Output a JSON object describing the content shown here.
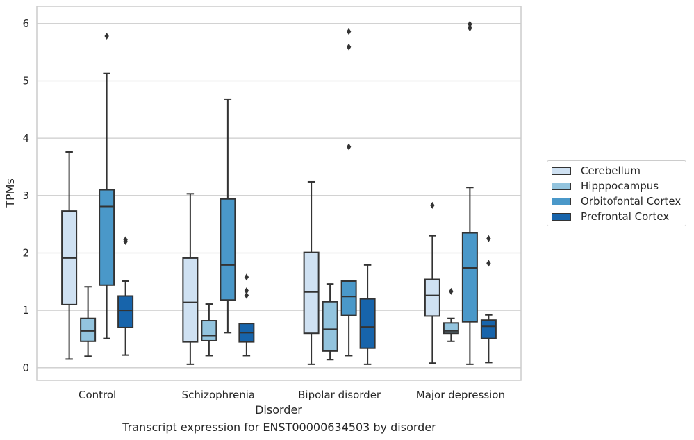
{
  "caption": "Transcript expression for ENST00000634503 by disorder",
  "colors": {
    "Cerebellum": "#cfe1f2",
    "Hipppocampus": "#93c4de",
    "Orbitofontal Cortex": "#4a98c9",
    "Prefrontal Cortex": "#1764ab",
    "line": "#333333",
    "grid": "#cccccc"
  },
  "chart_data": {
    "type": "boxplot",
    "xlabel": "Disorder",
    "ylabel": "TPMs",
    "ylim": [
      -0.22,
      6.3
    ],
    "yticks": [
      0,
      1,
      2,
      3,
      4,
      5,
      6
    ],
    "grid": "horizontal",
    "legend_position": "right",
    "categories": [
      "Control",
      "Schizophrenia",
      "Bipolar disorder",
      "Major depression"
    ],
    "series": [
      {
        "name": "Cerebellum",
        "boxes": [
          {
            "whislo": 0.15,
            "q1": 1.1,
            "med": 1.91,
            "q3": 2.73,
            "whishi": 3.76,
            "fliers": []
          },
          {
            "whislo": 0.06,
            "q1": 0.45,
            "med": 1.14,
            "q3": 1.91,
            "whishi": 3.03,
            "fliers": []
          },
          {
            "whislo": 0.06,
            "q1": 0.6,
            "med": 1.32,
            "q3": 2.01,
            "whishi": 3.24,
            "fliers": []
          },
          {
            "whislo": 0.08,
            "q1": 0.9,
            "med": 1.26,
            "q3": 1.54,
            "whishi": 2.3,
            "fliers": [
              2.83
            ]
          }
        ]
      },
      {
        "name": "Hipppocampus",
        "boxes": [
          {
            "whislo": 0.2,
            "q1": 0.46,
            "med": 0.64,
            "q3": 0.86,
            "whishi": 1.41,
            "fliers": []
          },
          {
            "whislo": 0.21,
            "q1": 0.47,
            "med": 0.56,
            "q3": 0.82,
            "whishi": 1.11,
            "fliers": []
          },
          {
            "whislo": 0.14,
            "q1": 0.29,
            "med": 0.67,
            "q3": 1.15,
            "whishi": 1.46,
            "fliers": []
          },
          {
            "whislo": 0.46,
            "q1": 0.6,
            "med": 0.64,
            "q3": 0.78,
            "whishi": 0.86,
            "fliers": [
              1.33
            ]
          }
        ]
      },
      {
        "name": "Orbitofontal Cortex",
        "boxes": [
          {
            "whislo": 0.51,
            "q1": 1.44,
            "med": 2.81,
            "q3": 3.1,
            "whishi": 5.13,
            "fliers": [
              5.78
            ]
          },
          {
            "whislo": 0.61,
            "q1": 1.18,
            "med": 1.79,
            "q3": 2.94,
            "whishi": 4.68,
            "fliers": []
          },
          {
            "whislo": 0.21,
            "q1": 0.91,
            "med": 1.24,
            "q3": 1.51,
            "whishi": 1.51,
            "fliers": [
              3.85,
              5.59,
              5.86
            ]
          },
          {
            "whislo": 0.06,
            "q1": 0.8,
            "med": 1.74,
            "q3": 2.35,
            "whishi": 3.14,
            "fliers": [
              5.92,
              5.99
            ]
          }
        ]
      },
      {
        "name": "Prefrontal Cortex",
        "boxes": [
          {
            "whislo": 0.22,
            "q1": 0.7,
            "med": 1.0,
            "q3": 1.25,
            "whishi": 1.51,
            "fliers": [
              2.2,
              2.23
            ]
          },
          {
            "whislo": 0.21,
            "q1": 0.45,
            "med": 0.61,
            "q3": 0.77,
            "whishi": 0.77,
            "fliers": [
              1.26,
              1.34,
              1.58
            ]
          },
          {
            "whislo": 0.06,
            "q1": 0.34,
            "med": 0.71,
            "q3": 1.2,
            "whishi": 1.79,
            "fliers": []
          },
          {
            "whislo": 0.09,
            "q1": 0.51,
            "med": 0.72,
            "q3": 0.83,
            "whishi": 0.92,
            "fliers": [
              1.82,
              2.25
            ]
          }
        ]
      }
    ]
  }
}
